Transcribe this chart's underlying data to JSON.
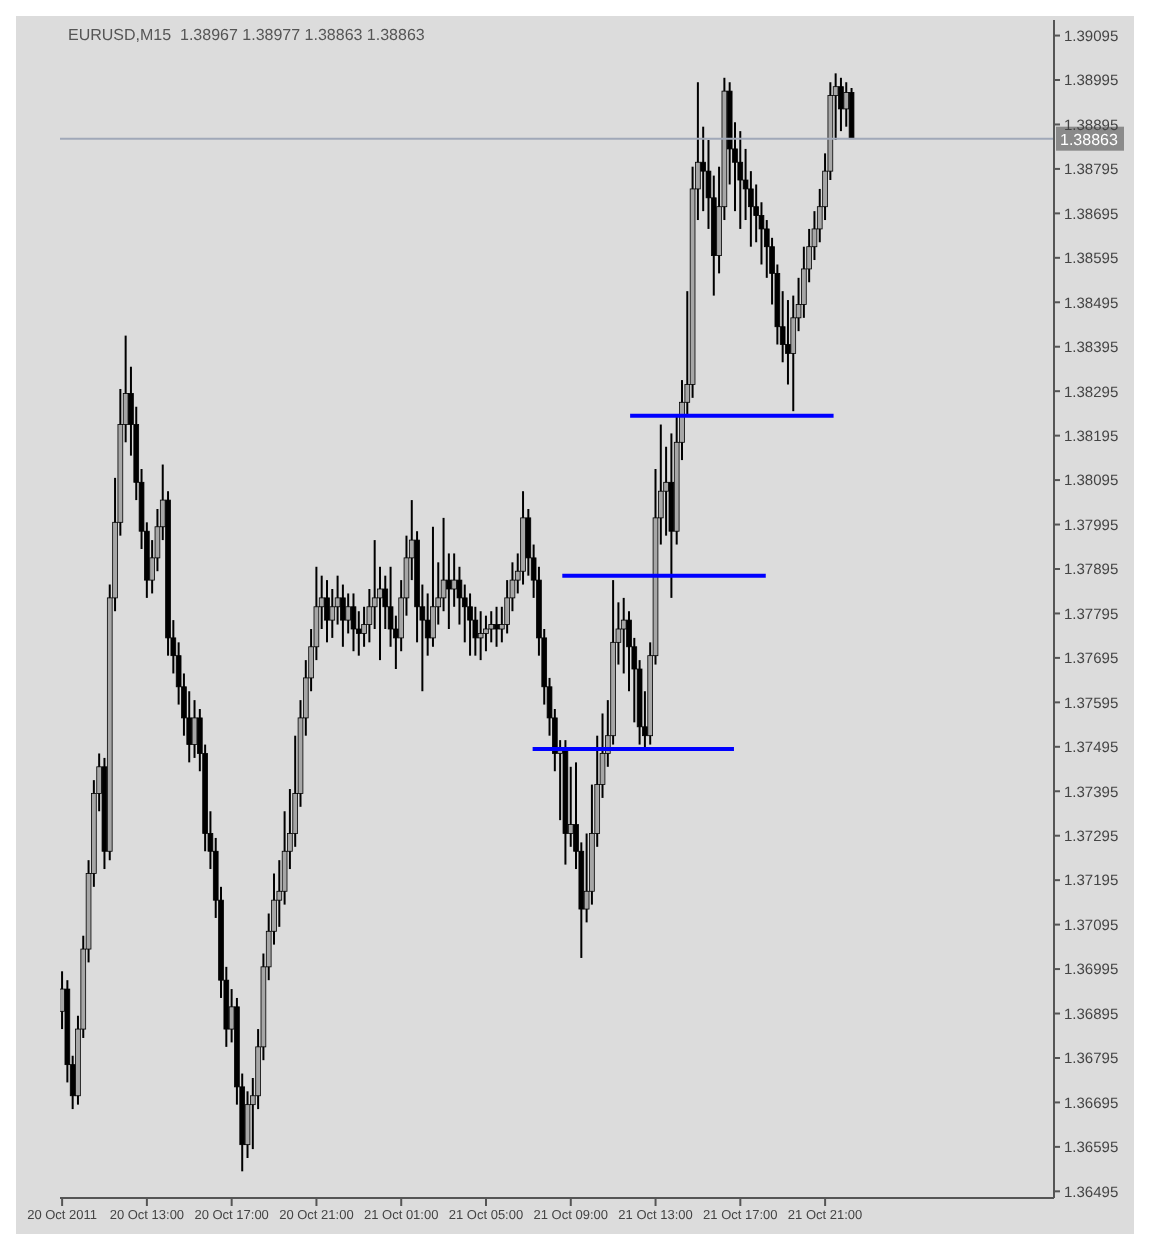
{
  "chart_data": {
    "type": "candlestick",
    "title": "EURUSD,M15  1.38967 1.38977 1.38863 1.38863",
    "color": "#000000",
    "x": [
      "2011-10-20T09:00",
      "2011-10-20T09:15",
      "2011-10-20T09:30",
      "2011-10-20T09:45",
      "2011-10-20T10:00",
      "2011-10-20T10:15",
      "2011-10-20T10:30",
      "2011-10-20T10:45",
      "2011-10-20T11:00",
      "2011-10-20T11:15",
      "2011-10-20T11:30",
      "2011-10-20T11:45",
      "2011-10-20T12:00",
      "2011-10-20T12:15",
      "2011-10-20T12:30",
      "2011-10-20T12:45",
      "2011-10-20T13:00",
      "2011-10-20T13:15",
      "2011-10-20T13:30",
      "2011-10-20T13:45",
      "2011-10-20T14:00",
      "2011-10-20T14:15",
      "2011-10-20T14:30",
      "2011-10-20T14:45",
      "2011-10-20T15:00",
      "2011-10-20T15:15",
      "2011-10-20T15:30",
      "2011-10-20T15:45",
      "2011-10-20T16:00",
      "2011-10-20T16:15",
      "2011-10-20T16:30",
      "2011-10-20T16:45",
      "2011-10-20T17:00",
      "2011-10-20T17:15",
      "2011-10-20T17:30",
      "2011-10-20T17:45",
      "2011-10-20T18:00",
      "2011-10-20T18:15",
      "2011-10-20T18:30",
      "2011-10-20T18:45",
      "2011-10-20T19:00",
      "2011-10-20T19:15",
      "2011-10-20T19:30",
      "2011-10-20T19:45",
      "2011-10-20T20:00",
      "2011-10-20T20:15",
      "2011-10-20T20:30",
      "2011-10-20T20:45",
      "2011-10-20T21:00",
      "2011-10-20T21:15",
      "2011-10-20T21:30",
      "2011-10-20T21:45",
      "2011-10-20T22:00",
      "2011-10-20T22:15",
      "2011-10-20T22:30",
      "2011-10-20T22:45",
      "2011-10-20T23:00",
      "2011-10-20T23:15",
      "2011-10-20T23:30",
      "2011-10-20T23:45",
      "2011-10-21T00:00",
      "2011-10-21T00:15",
      "2011-10-21T00:30",
      "2011-10-21T00:45",
      "2011-10-21T01:00",
      "2011-10-21T01:15",
      "2011-10-21T01:30",
      "2011-10-21T01:45",
      "2011-10-21T02:00",
      "2011-10-21T02:15",
      "2011-10-21T02:30",
      "2011-10-21T02:45",
      "2011-10-21T03:00",
      "2011-10-21T03:15",
      "2011-10-21T03:30",
      "2011-10-21T03:45",
      "2011-10-21T04:00",
      "2011-10-21T04:15",
      "2011-10-21T04:30",
      "2011-10-21T04:45",
      "2011-10-21T05:00",
      "2011-10-21T05:15",
      "2011-10-21T05:30",
      "2011-10-21T05:45",
      "2011-10-21T06:00",
      "2011-10-21T06:15",
      "2011-10-21T06:30",
      "2011-10-21T06:45",
      "2011-10-21T07:00",
      "2011-10-21T07:15",
      "2011-10-21T07:30",
      "2011-10-21T07:45",
      "2011-10-21T08:00",
      "2011-10-21T08:15",
      "2011-10-21T08:30",
      "2011-10-21T08:45",
      "2011-10-21T09:00",
      "2011-10-21T09:15",
      "2011-10-21T09:30",
      "2011-10-21T09:45",
      "2011-10-21T10:00",
      "2011-10-21T10:15",
      "2011-10-21T10:30",
      "2011-10-21T10:45",
      "2011-10-21T11:00",
      "2011-10-21T11:15",
      "2011-10-21T11:30",
      "2011-10-21T11:45",
      "2011-10-21T12:00",
      "2011-10-21T12:15",
      "2011-10-21T12:30",
      "2011-10-21T12:45",
      "2011-10-21T13:00",
      "2011-10-21T13:15",
      "2011-10-21T13:30",
      "2011-10-21T13:45",
      "2011-10-21T14:00",
      "2011-10-21T14:15",
      "2011-10-21T14:30",
      "2011-10-21T14:45",
      "2011-10-21T15:00",
      "2011-10-21T15:15",
      "2011-10-21T15:30",
      "2011-10-21T15:45",
      "2011-10-21T16:00",
      "2011-10-21T16:15",
      "2011-10-21T16:30",
      "2011-10-21T16:45",
      "2011-10-21T17:00",
      "2011-10-21T17:15",
      "2011-10-21T17:30",
      "2011-10-21T17:45",
      "2011-10-21T18:00",
      "2011-10-21T18:15",
      "2011-10-21T18:30",
      "2011-10-21T18:45",
      "2011-10-21T19:00",
      "2011-10-21T19:15",
      "2011-10-21T19:30",
      "2011-10-21T19:45",
      "2011-10-21T20:00",
      "2011-10-21T20:15",
      "2011-10-21T20:30",
      "2011-10-21T20:45",
      "2011-10-21T21:00",
      "2011-10-21T21:15",
      "2011-10-21T21:30",
      "2011-10-21T21:45",
      "2011-10-21T22:00",
      "2011-10-21T22:15"
    ],
    "ohlc": [
      [
        1.369,
        1.3699,
        1.3686,
        1.3695
      ],
      [
        1.3695,
        1.3697,
        1.3674,
        1.3678
      ],
      [
        1.3678,
        1.368,
        1.3668,
        1.3671
      ],
      [
        1.3671,
        1.3689,
        1.3669,
        1.3686
      ],
      [
        1.3686,
        1.3707,
        1.3684,
        1.3704
      ],
      [
        1.3704,
        1.3724,
        1.3701,
        1.3721
      ],
      [
        1.3721,
        1.3742,
        1.3718,
        1.3739
      ],
      [
        1.3739,
        1.3748,
        1.3735,
        1.3745
      ],
      [
        1.3745,
        1.3747,
        1.3722,
        1.3726
      ],
      [
        1.3726,
        1.3786,
        1.3724,
        1.3783
      ],
      [
        1.3783,
        1.381,
        1.378,
        1.38
      ],
      [
        1.38,
        1.383,
        1.3797,
        1.3822
      ],
      [
        1.3822,
        1.3842,
        1.3818,
        1.3829
      ],
      [
        1.3829,
        1.3835,
        1.3815,
        1.3822
      ],
      [
        1.3822,
        1.3826,
        1.3805,
        1.3809
      ],
      [
        1.3809,
        1.3812,
        1.3794,
        1.3798
      ],
      [
        1.3798,
        1.38,
        1.3783,
        1.3787
      ],
      [
        1.3787,
        1.3796,
        1.3784,
        1.3792
      ],
      [
        1.3792,
        1.3803,
        1.3789,
        1.3799
      ],
      [
        1.3799,
        1.3813,
        1.3796,
        1.3805
      ],
      [
        1.3805,
        1.3807,
        1.377,
        1.3774
      ],
      [
        1.3774,
        1.3778,
        1.3766,
        1.377
      ],
      [
        1.377,
        1.3773,
        1.3759,
        1.3763
      ],
      [
        1.3763,
        1.3766,
        1.3752,
        1.3756
      ],
      [
        1.3756,
        1.3762,
        1.3746,
        1.375
      ],
      [
        1.375,
        1.376,
        1.3747,
        1.3756
      ],
      [
        1.3756,
        1.3758,
        1.3744,
        1.3748
      ],
      [
        1.3748,
        1.375,
        1.3726,
        1.373
      ],
      [
        1.373,
        1.3735,
        1.3722,
        1.3726
      ],
      [
        1.3726,
        1.3729,
        1.3711,
        1.3715
      ],
      [
        1.3715,
        1.3718,
        1.3693,
        1.3697
      ],
      [
        1.3697,
        1.37,
        1.3682,
        1.3686
      ],
      [
        1.3686,
        1.3695,
        1.3683,
        1.3691
      ],
      [
        1.3691,
        1.3693,
        1.3669,
        1.3673
      ],
      [
        1.3673,
        1.3676,
        1.3654,
        1.366
      ],
      [
        1.366,
        1.3672,
        1.3657,
        1.3669
      ],
      [
        1.3669,
        1.3675,
        1.3659,
        1.3671
      ],
      [
        1.3671,
        1.3686,
        1.3668,
        1.3682
      ],
      [
        1.3682,
        1.3703,
        1.3679,
        1.37
      ],
      [
        1.37,
        1.3712,
        1.3697,
        1.3708
      ],
      [
        1.3708,
        1.3721,
        1.3705,
        1.3715
      ],
      [
        1.3715,
        1.3724,
        1.3709,
        1.3717
      ],
      [
        1.3717,
        1.3735,
        1.3714,
        1.3726
      ],
      [
        1.3726,
        1.374,
        1.3722,
        1.373
      ],
      [
        1.373,
        1.3752,
        1.3727,
        1.3739
      ],
      [
        1.3739,
        1.376,
        1.3736,
        1.3756
      ],
      [
        1.3756,
        1.3769,
        1.3752,
        1.3765
      ],
      [
        1.3765,
        1.3776,
        1.3762,
        1.3772
      ],
      [
        1.3772,
        1.379,
        1.3769,
        1.3781
      ],
      [
        1.3781,
        1.3788,
        1.3776,
        1.3783
      ],
      [
        1.3783,
        1.3787,
        1.3773,
        1.3778
      ],
      [
        1.3778,
        1.3785,
        1.3774,
        1.3781
      ],
      [
        1.3781,
        1.3788,
        1.3777,
        1.3783
      ],
      [
        1.3783,
        1.3786,
        1.3772,
        1.3778
      ],
      [
        1.3778,
        1.3784,
        1.3775,
        1.3781
      ],
      [
        1.3781,
        1.3784,
        1.3771,
        1.3776
      ],
      [
        1.3776,
        1.378,
        1.377,
        1.3775
      ],
      [
        1.3775,
        1.3781,
        1.3772,
        1.3777
      ],
      [
        1.3777,
        1.3785,
        1.3773,
        1.3781
      ],
      [
        1.3781,
        1.3796,
        1.3776,
        1.3783
      ],
      [
        1.3783,
        1.379,
        1.3769,
        1.3785
      ],
      [
        1.3785,
        1.3788,
        1.3776,
        1.3781
      ],
      [
        1.3781,
        1.379,
        1.3772,
        1.3776
      ],
      [
        1.3776,
        1.3779,
        1.3767,
        1.3774
      ],
      [
        1.3774,
        1.3787,
        1.3771,
        1.3783
      ],
      [
        1.3783,
        1.3797,
        1.3779,
        1.3792
      ],
      [
        1.3792,
        1.3805,
        1.3787,
        1.3796
      ],
      [
        1.3796,
        1.3798,
        1.3773,
        1.3781
      ],
      [
        1.3781,
        1.3786,
        1.3762,
        1.3778
      ],
      [
        1.3778,
        1.3784,
        1.377,
        1.3774
      ],
      [
        1.3774,
        1.3799,
        1.3772,
        1.3781
      ],
      [
        1.3781,
        1.3791,
        1.3777,
        1.3783
      ],
      [
        1.3783,
        1.3801,
        1.378,
        1.3787
      ],
      [
        1.3787,
        1.3793,
        1.3776,
        1.3785
      ],
      [
        1.3785,
        1.3793,
        1.3781,
        1.3787
      ],
      [
        1.3787,
        1.379,
        1.3777,
        1.3783
      ],
      [
        1.3783,
        1.3786,
        1.3773,
        1.3781
      ],
      [
        1.3781,
        1.3784,
        1.377,
        1.3778
      ],
      [
        1.3778,
        1.3781,
        1.377,
        1.3774
      ],
      [
        1.3774,
        1.378,
        1.3769,
        1.3775
      ],
      [
        1.3775,
        1.3779,
        1.3771,
        1.3776
      ],
      [
        1.3776,
        1.378,
        1.3773,
        1.3777
      ],
      [
        1.3777,
        1.3781,
        1.3772,
        1.3776
      ],
      [
        1.3776,
        1.3781,
        1.3773,
        1.3777
      ],
      [
        1.3777,
        1.3787,
        1.3775,
        1.3783
      ],
      [
        1.3783,
        1.3791,
        1.378,
        1.3787
      ],
      [
        1.3787,
        1.3793,
        1.3784,
        1.3789
      ],
      [
        1.3789,
        1.3807,
        1.3786,
        1.3801
      ],
      [
        1.3801,
        1.3803,
        1.3788,
        1.3792
      ],
      [
        1.3792,
        1.3795,
        1.3783,
        1.3787
      ],
      [
        1.3787,
        1.379,
        1.377,
        1.3774
      ],
      [
        1.3774,
        1.3776,
        1.3759,
        1.3763
      ],
      [
        1.3763,
        1.3765,
        1.3752,
        1.3756
      ],
      [
        1.3756,
        1.3758,
        1.3744,
        1.3748
      ],
      [
        1.3748,
        1.3751,
        1.3733,
        1.3749
      ],
      [
        1.3749,
        1.3751,
        1.3723,
        1.373
      ],
      [
        1.373,
        1.3745,
        1.3727,
        1.3732
      ],
      [
        1.3732,
        1.3746,
        1.3722,
        1.3726
      ],
      [
        1.3726,
        1.3728,
        1.3702,
        1.3713
      ],
      [
        1.3713,
        1.373,
        1.371,
        1.3717
      ],
      [
        1.3717,
        1.3741,
        1.3714,
        1.373
      ],
      [
        1.373,
        1.3752,
        1.3727,
        1.3741
      ],
      [
        1.3741,
        1.3757,
        1.3738,
        1.3748
      ],
      [
        1.3748,
        1.376,
        1.3745,
        1.3752
      ],
      [
        1.3752,
        1.3787,
        1.375,
        1.3773
      ],
      [
        1.3773,
        1.3782,
        1.3768,
        1.3776
      ],
      [
        1.3776,
        1.3783,
        1.3766,
        1.3778
      ],
      [
        1.3778,
        1.378,
        1.3762,
        1.3772
      ],
      [
        1.3772,
        1.3774,
        1.3755,
        1.3767
      ],
      [
        1.3767,
        1.3769,
        1.375,
        1.3754
      ],
      [
        1.3754,
        1.3762,
        1.3749,
        1.3752
      ],
      [
        1.3752,
        1.3773,
        1.375,
        1.377
      ],
      [
        1.377,
        1.3812,
        1.3768,
        1.3801
      ],
      [
        1.3801,
        1.3822,
        1.3795,
        1.3807
      ],
      [
        1.3807,
        1.3817,
        1.3797,
        1.3809
      ],
      [
        1.3809,
        1.382,
        1.3783,
        1.3798
      ],
      [
        1.3798,
        1.3824,
        1.3795,
        1.3818
      ],
      [
        1.3818,
        1.3832,
        1.3814,
        1.3827
      ],
      [
        1.3827,
        1.3852,
        1.3824,
        1.3831
      ],
      [
        1.3831,
        1.388,
        1.3828,
        1.3875
      ],
      [
        1.3875,
        1.3899,
        1.3868,
        1.3881
      ],
      [
        1.3881,
        1.3889,
        1.387,
        1.3879
      ],
      [
        1.3879,
        1.3886,
        1.3866,
        1.3873
      ],
      [
        1.3873,
        1.3878,
        1.3851,
        1.386
      ],
      [
        1.386,
        1.388,
        1.3856,
        1.3871
      ],
      [
        1.3871,
        1.39,
        1.3868,
        1.3897
      ],
      [
        1.3897,
        1.3899,
        1.3876,
        1.3884
      ],
      [
        1.3884,
        1.389,
        1.387,
        1.3881
      ],
      [
        1.3881,
        1.3888,
        1.3866,
        1.3877
      ],
      [
        1.3877,
        1.3884,
        1.3868,
        1.3875
      ],
      [
        1.3875,
        1.3879,
        1.3862,
        1.3871
      ],
      [
        1.3871,
        1.3876,
        1.3863,
        1.3869
      ],
      [
        1.3869,
        1.3872,
        1.3858,
        1.3866
      ],
      [
        1.3866,
        1.3868,
        1.3855,
        1.3862
      ],
      [
        1.3862,
        1.3864,
        1.3849,
        1.3856
      ],
      [
        1.3856,
        1.3858,
        1.384,
        1.3844
      ],
      [
        1.3844,
        1.3852,
        1.3836,
        1.384
      ],
      [
        1.384,
        1.385,
        1.3831,
        1.3838
      ],
      [
        1.3838,
        1.3851,
        1.3825,
        1.3846
      ],
      [
        1.3846,
        1.3855,
        1.3843,
        1.3849
      ],
      [
        1.3849,
        1.3862,
        1.3846,
        1.3857
      ],
      [
        1.3857,
        1.3866,
        1.3854,
        1.3862
      ],
      [
        1.3862,
        1.387,
        1.3859,
        1.3866
      ],
      [
        1.3866,
        1.3875,
        1.3863,
        1.3871
      ],
      [
        1.3871,
        1.3883,
        1.3868,
        1.3879
      ],
      [
        1.3879,
        1.3899,
        1.3877,
        1.3896
      ],
      [
        1.3896,
        1.3901,
        1.3886,
        1.3898
      ],
      [
        1.3898,
        1.39,
        1.3888,
        1.3893
      ],
      [
        1.3893,
        1.3899,
        1.3889,
        1.38967
      ],
      [
        1.38967,
        1.38977,
        1.38863,
        1.38863
      ]
    ],
    "series": [
      {
        "type": "line",
        "color": "#0000ff",
        "x": [
          "2011-10-21T07:12",
          "2011-10-21T16:42"
        ],
        "values": [
          1.3749,
          1.3749
        ]
      },
      {
        "type": "line",
        "color": "#0000ff",
        "x": [
          "2011-10-21T08:36",
          "2011-10-21T18:12"
        ],
        "values": [
          1.3788,
          1.3788
        ]
      },
      {
        "type": "line",
        "color": "#0000ff",
        "x": [
          "2011-10-21T11:48",
          "2011-10-21T21:24"
        ],
        "values": [
          1.3824,
          1.3824
        ]
      }
    ],
    "ref_lines": [
      {
        "axis": "y",
        "value": 1.38863,
        "label": "1.38863",
        "color": "#a0a8b8"
      }
    ],
    "xlim": [
      "2011-10-20T08:54",
      "2011-10-22T07:48"
    ],
    "xticks": [
      {
        "value": "2011-10-20T09:00",
        "label": "20 Oct 2011"
      },
      {
        "value": "2011-10-20T13:00",
        "label": "20 Oct 13:00"
      },
      {
        "value": "2011-10-20T17:00",
        "label": "20 Oct 17:00"
      },
      {
        "value": "2011-10-20T21:00",
        "label": "20 Oct 21:00"
      },
      {
        "value": "2011-10-21T01:00",
        "label": "21 Oct 01:00"
      },
      {
        "value": "2011-10-21T05:00",
        "label": "21 Oct 05:00"
      },
      {
        "value": "2011-10-21T09:00",
        "label": "21 Oct 09:00"
      },
      {
        "value": "2011-10-21T13:00",
        "label": "21 Oct 13:00"
      },
      {
        "value": "2011-10-21T17:00",
        "label": "21 Oct 17:00"
      },
      {
        "value": "2011-10-21T21:00",
        "label": "21 Oct 21:00"
      }
    ],
    "ylim": [
      1.3648,
      1.3913
    ],
    "yticks": [
      1.36495,
      1.36595,
      1.36695,
      1.36795,
      1.36895,
      1.36995,
      1.37095,
      1.37195,
      1.37295,
      1.37395,
      1.37495,
      1.37595,
      1.37695,
      1.37795,
      1.37895,
      1.37995,
      1.38095,
      1.38195,
      1.38295,
      1.38395,
      1.38495,
      1.38595,
      1.38695,
      1.38795,
      1.38895,
      1.38995,
      1.39095
    ]
  }
}
